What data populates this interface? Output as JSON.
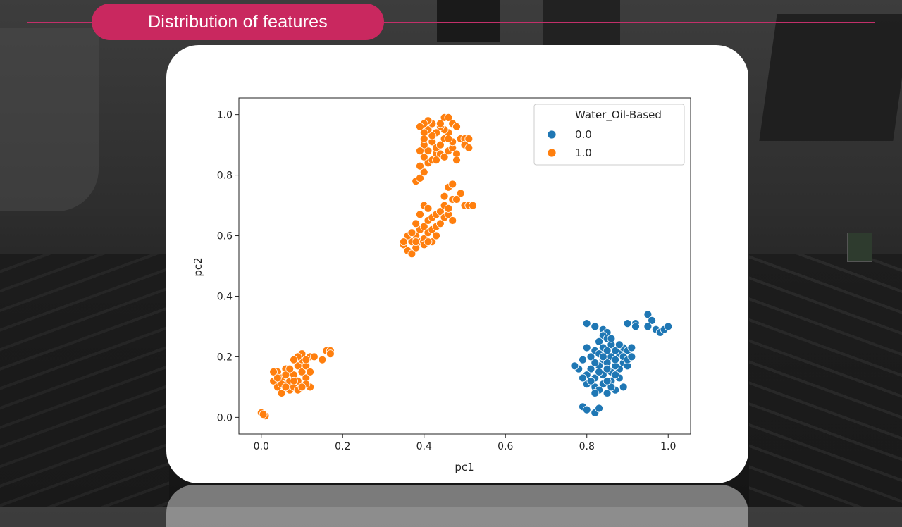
{
  "slide": {
    "title": "Distribution of features",
    "accent_color": "#c9285f"
  },
  "chart_data": {
    "type": "scatter",
    "xlabel": "pc1",
    "ylabel": "pc2",
    "xlim": [
      -0.055,
      1.055
    ],
    "ylim": [
      -0.055,
      1.055
    ],
    "xticks": [
      0.0,
      0.2,
      0.4,
      0.6,
      0.8,
      1.0
    ],
    "yticks": [
      0.0,
      0.2,
      0.4,
      0.6,
      0.8,
      1.0
    ],
    "xtick_labels": [
      "0.0",
      "0.2",
      "0.4",
      "0.6",
      "0.8",
      "1.0"
    ],
    "ytick_labels": [
      "0.0",
      "0.2",
      "0.4",
      "0.6",
      "0.8",
      "1.0"
    ],
    "grid": false,
    "legend": {
      "title": "Water_Oil-Based",
      "placement": "top-right"
    },
    "series": [
      {
        "name": "0.0",
        "color": "#1f77b4",
        "points": [
          [
            0.8,
            0.31
          ],
          [
            0.82,
            0.3
          ],
          [
            0.84,
            0.29
          ],
          [
            0.85,
            0.28
          ],
          [
            0.84,
            0.27
          ],
          [
            0.85,
            0.26
          ],
          [
            0.83,
            0.25
          ],
          [
            0.86,
            0.24
          ],
          [
            0.84,
            0.23
          ],
          [
            0.8,
            0.23
          ],
          [
            0.82,
            0.22
          ],
          [
            0.83,
            0.21
          ],
          [
            0.81,
            0.2
          ],
          [
            0.79,
            0.19
          ],
          [
            0.84,
            0.19
          ],
          [
            0.86,
            0.2
          ],
          [
            0.88,
            0.21
          ],
          [
            0.87,
            0.22
          ],
          [
            0.89,
            0.23
          ],
          [
            0.9,
            0.22
          ],
          [
            0.91,
            0.23
          ],
          [
            0.85,
            0.18
          ],
          [
            0.83,
            0.17
          ],
          [
            0.81,
            0.16
          ],
          [
            0.78,
            0.16
          ],
          [
            0.77,
            0.17
          ],
          [
            0.8,
            0.14
          ],
          [
            0.82,
            0.13
          ],
          [
            0.84,
            0.14
          ],
          [
            0.86,
            0.15
          ],
          [
            0.88,
            0.16
          ],
          [
            0.87,
            0.17
          ],
          [
            0.89,
            0.18
          ],
          [
            0.9,
            0.17
          ],
          [
            0.88,
            0.13
          ],
          [
            0.86,
            0.12
          ],
          [
            0.84,
            0.11
          ],
          [
            0.82,
            0.1
          ],
          [
            0.8,
            0.11
          ],
          [
            0.83,
            0.09
          ],
          [
            0.85,
            0.08
          ],
          [
            0.87,
            0.09
          ],
          [
            0.89,
            0.1
          ],
          [
            0.86,
            0.1
          ],
          [
            0.81,
            0.12
          ],
          [
            0.79,
            0.13
          ],
          [
            0.87,
            0.19
          ],
          [
            0.85,
            0.22
          ],
          [
            0.88,
            0.24
          ],
          [
            0.86,
            0.26
          ],
          [
            0.83,
            0.15
          ],
          [
            0.89,
            0.2
          ],
          [
            0.9,
            0.19
          ],
          [
            0.91,
            0.2
          ],
          [
            0.84,
            0.2
          ],
          [
            0.82,
            0.18
          ],
          [
            0.85,
            0.16
          ],
          [
            0.87,
            0.14
          ],
          [
            0.85,
            0.12
          ],
          [
            0.82,
            0.08
          ],
          [
            0.9,
            0.31
          ],
          [
            0.92,
            0.31
          ],
          [
            0.92,
            0.3
          ],
          [
            0.95,
            0.34
          ],
          [
            0.96,
            0.32
          ],
          [
            0.95,
            0.3
          ],
          [
            0.97,
            0.29
          ],
          [
            0.98,
            0.28
          ],
          [
            0.99,
            0.29
          ],
          [
            1.0,
            0.3
          ],
          [
            0.79,
            0.035
          ],
          [
            0.8,
            0.025
          ],
          [
            0.82,
            0.015
          ],
          [
            0.83,
            0.03
          ]
        ]
      },
      {
        "name": "1.0",
        "color": "#ff7f0e",
        "points": [
          [
            0.0,
            0.015
          ],
          [
            0.01,
            0.005
          ],
          [
            0.005,
            0.01
          ],
          [
            0.03,
            0.12
          ],
          [
            0.04,
            0.1
          ],
          [
            0.04,
            0.15
          ],
          [
            0.05,
            0.13
          ],
          [
            0.05,
            0.08
          ],
          [
            0.06,
            0.11
          ],
          [
            0.06,
            0.16
          ],
          [
            0.07,
            0.12
          ],
          [
            0.07,
            0.09
          ],
          [
            0.08,
            0.14
          ],
          [
            0.08,
            0.1
          ],
          [
            0.09,
            0.17
          ],
          [
            0.09,
            0.12
          ],
          [
            0.1,
            0.15
          ],
          [
            0.1,
            0.19
          ],
          [
            0.11,
            0.13
          ],
          [
            0.11,
            0.17
          ],
          [
            0.12,
            0.2
          ],
          [
            0.1,
            0.21
          ],
          [
            0.09,
            0.2
          ],
          [
            0.08,
            0.19
          ],
          [
            0.12,
            0.1
          ],
          [
            0.11,
            0.11
          ],
          [
            0.06,
            0.14
          ],
          [
            0.05,
            0.11
          ],
          [
            0.07,
            0.16
          ],
          [
            0.03,
            0.15
          ],
          [
            0.04,
            0.13
          ],
          [
            0.09,
            0.09
          ],
          [
            0.1,
            0.1
          ],
          [
            0.08,
            0.12
          ],
          [
            0.12,
            0.15
          ],
          [
            0.11,
            0.19
          ],
          [
            0.13,
            0.2
          ],
          [
            0.06,
            0.1
          ],
          [
            0.15,
            0.19
          ],
          [
            0.16,
            0.22
          ],
          [
            0.17,
            0.22
          ],
          [
            0.17,
            0.21
          ],
          [
            0.35,
            0.57
          ],
          [
            0.36,
            0.55
          ],
          [
            0.37,
            0.58
          ],
          [
            0.37,
            0.54
          ],
          [
            0.38,
            0.6
          ],
          [
            0.38,
            0.56
          ],
          [
            0.39,
            0.62
          ],
          [
            0.39,
            0.58
          ],
          [
            0.4,
            0.63
          ],
          [
            0.4,
            0.59
          ],
          [
            0.41,
            0.65
          ],
          [
            0.41,
            0.61
          ],
          [
            0.42,
            0.66
          ],
          [
            0.42,
            0.62
          ],
          [
            0.43,
            0.67
          ],
          [
            0.43,
            0.63
          ],
          [
            0.44,
            0.68
          ],
          [
            0.44,
            0.64
          ],
          [
            0.45,
            0.66
          ],
          [
            0.45,
            0.7
          ],
          [
            0.46,
            0.67
          ],
          [
            0.46,
            0.69
          ],
          [
            0.47,
            0.65
          ],
          [
            0.4,
            0.7
          ],
          [
            0.41,
            0.69
          ],
          [
            0.39,
            0.67
          ],
          [
            0.38,
            0.64
          ],
          [
            0.36,
            0.6
          ],
          [
            0.42,
            0.58
          ],
          [
            0.43,
            0.6
          ],
          [
            0.4,
            0.57
          ],
          [
            0.37,
            0.61
          ],
          [
            0.41,
            0.58
          ],
          [
            0.38,
            0.58
          ],
          [
            0.35,
            0.58
          ],
          [
            0.46,
            0.76
          ],
          [
            0.47,
            0.77
          ],
          [
            0.45,
            0.73
          ],
          [
            0.47,
            0.72
          ],
          [
            0.49,
            0.74
          ],
          [
            0.5,
            0.7
          ],
          [
            0.51,
            0.7
          ],
          [
            0.52,
            0.7
          ],
          [
            0.48,
            0.72
          ],
          [
            0.38,
            0.78
          ],
          [
            0.39,
            0.79
          ],
          [
            0.4,
            0.81
          ],
          [
            0.39,
            0.83
          ],
          [
            0.41,
            0.84
          ],
          [
            0.4,
            0.86
          ],
          [
            0.42,
            0.85
          ],
          [
            0.43,
            0.87
          ],
          [
            0.41,
            0.88
          ],
          [
            0.4,
            0.9
          ],
          [
            0.42,
            0.91
          ],
          [
            0.43,
            0.89
          ],
          [
            0.44,
            0.9
          ],
          [
            0.45,
            0.92
          ],
          [
            0.46,
            0.94
          ],
          [
            0.45,
            0.95
          ],
          [
            0.44,
            0.96
          ],
          [
            0.43,
            0.94
          ],
          [
            0.42,
            0.93
          ],
          [
            0.41,
            0.95
          ],
          [
            0.4,
            0.94
          ],
          [
            0.44,
            0.87
          ],
          [
            0.45,
            0.86
          ],
          [
            0.46,
            0.88
          ],
          [
            0.47,
            0.89
          ],
          [
            0.48,
            0.87
          ],
          [
            0.47,
            0.91
          ],
          [
            0.46,
            0.92
          ],
          [
            0.45,
            0.99
          ],
          [
            0.46,
            0.99
          ],
          [
            0.44,
            0.97
          ],
          [
            0.47,
            0.97
          ],
          [
            0.48,
            0.96
          ],
          [
            0.49,
            0.92
          ],
          [
            0.5,
            0.92
          ],
          [
            0.51,
            0.92
          ],
          [
            0.5,
            0.9
          ],
          [
            0.51,
            0.89
          ],
          [
            0.48,
            0.85
          ],
          [
            0.43,
            0.85
          ],
          [
            0.42,
            0.97
          ],
          [
            0.41,
            0.98
          ],
          [
            0.4,
            0.97
          ],
          [
            0.39,
            0.96
          ],
          [
            0.4,
            0.92
          ],
          [
            0.39,
            0.88
          ]
        ]
      }
    ]
  }
}
